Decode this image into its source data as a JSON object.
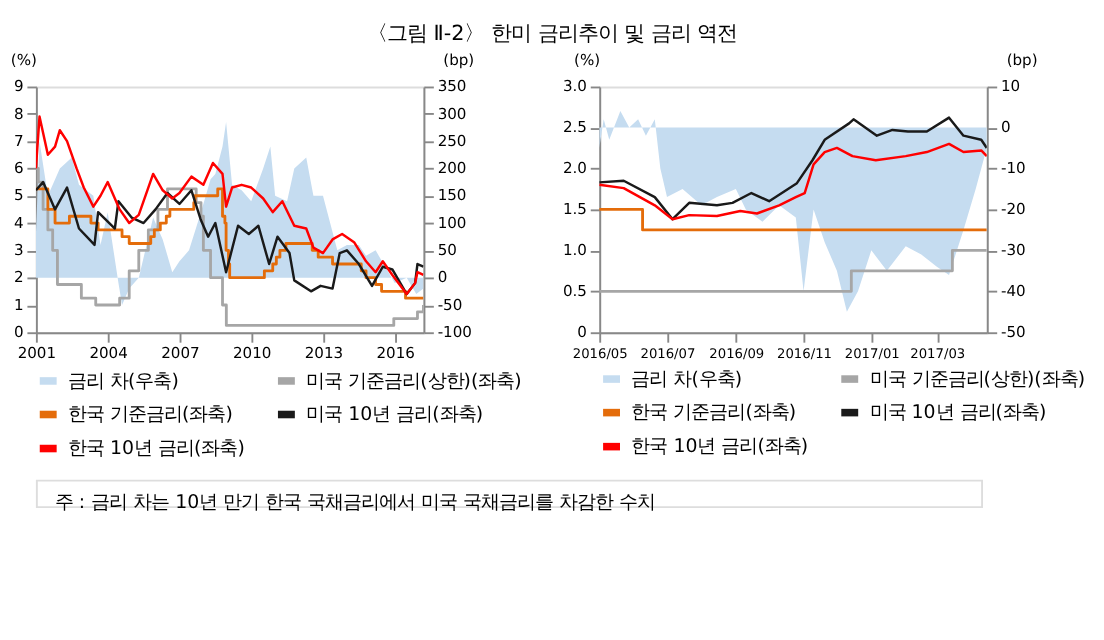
{
  "chart_data": [
    {
      "type": "line",
      "title": "〈그림 Ⅱ-2〉 한미 금리추이 및 금리 역전",
      "annotations": [
        "주 : 금리 차는 10년 만기 한국 국채금리에서 미국 국채금리를 차감한 수치"
      ],
      "xlim": [
        2001,
        2017.2
      ],
      "xticks": [
        2001,
        2004,
        2007,
        2010,
        2013,
        2016
      ],
      "ylim": [
        0,
        9
      ],
      "yticks": [
        0,
        1,
        2,
        3,
        4,
        5,
        6,
        7,
        8,
        9
      ],
      "y2lim": [
        -100,
        350
      ],
      "y2ticks": [
        -100,
        -50,
        0,
        50,
        100,
        150,
        200,
        250,
        300,
        350
      ],
      "ylabel": "(%)",
      "y2label": "(bp)",
      "legend": "bottom",
      "grid": false,
      "series": [
        {
          "name": "금리 차(우축)",
          "type": "area",
          "axis": "y2",
          "color": "#c5dcf0",
          "x": [
            2001,
            2001.15,
            2001.5,
            2002.0,
            2002.5,
            2002.8,
            2003.4,
            2003.7,
            2004.0,
            2004.45,
            2004.6,
            2004.9,
            2005.3,
            2005.9,
            2006.3,
            2006.7,
            2007.0,
            2007.4,
            2007.9,
            2008.3,
            2008.5,
            2008.8,
            2008.95,
            2009.2,
            2009.6,
            2010.0,
            2010.5,
            2010.8,
            2011.0,
            2011.5,
            2011.8,
            2012.3,
            2012.6,
            2013.0,
            2013.6,
            2014.0,
            2014.5,
            2014.8,
            2015.2,
            2015.6,
            2016.0,
            2016.5,
            2016.9,
            2017.2
          ],
          "values": [
            80,
            250,
            150,
            200,
            220,
            170,
            150,
            60,
            120,
            -10,
            -50,
            -20,
            0,
            110,
            70,
            10,
            30,
            50,
            120,
            180,
            190,
            240,
            285,
            170,
            160,
            140,
            200,
            240,
            150,
            140,
            200,
            220,
            150,
            150,
            50,
            60,
            60,
            40,
            50,
            20,
            -10,
            0,
            -30,
            -20
          ]
        },
        {
          "name": "미국 기준금리(상한)(좌축)",
          "type": "step",
          "color": "#a6a6a6",
          "x": [
            2001,
            2001.1,
            2001.3,
            2001.5,
            2001.7,
            2001.9,
            2002.9,
            2003.5,
            2004.5,
            2004.9,
            2005.3,
            2005.7,
            2006.1,
            2006.5,
            2007.7,
            2007.9,
            2008.0,
            2008.3,
            2008.8,
            2008.96,
            2015.96,
            2016.95,
            2017.2
          ],
          "values": [
            6.0,
            5.5,
            4.5,
            3.75,
            3.0,
            1.75,
            1.25,
            1.0,
            1.25,
            2.25,
            3.0,
            3.75,
            4.5,
            5.25,
            4.75,
            4.25,
            3.0,
            2.0,
            1.0,
            0.25,
            0.5,
            0.75,
            1.0
          ]
        },
        {
          "name": "한국 기준금리(좌축)",
          "type": "step",
          "color": "#e46c0a",
          "x": [
            2001,
            2001.5,
            2001.8,
            2002.4,
            2003.3,
            2003.6,
            2004.6,
            2004.9,
            2005.8,
            2005.95,
            2006.2,
            2006.45,
            2006.6,
            2007.6,
            2007.65,
            2008.6,
            2008.8,
            2008.9,
            2008.95,
            2009.05,
            2009.1,
            2010.55,
            2010.9,
            2011.05,
            2011.2,
            2011.45,
            2012.55,
            2012.8,
            2013.4,
            2014.6,
            2014.8,
            2015.2,
            2015.45,
            2016.45,
            2017.2
          ],
          "values": [
            5.25,
            4.5,
            4.0,
            4.25,
            4.0,
            3.75,
            3.5,
            3.25,
            3.5,
            3.75,
            4.0,
            4.25,
            4.5,
            4.75,
            5.0,
            5.25,
            4.25,
            4.0,
            3.0,
            2.5,
            2.0,
            2.25,
            2.5,
            2.75,
            3.0,
            3.25,
            3.0,
            2.75,
            2.5,
            2.25,
            2.0,
            1.75,
            1.5,
            1.25,
            1.25
          ]
        },
        {
          "name": "미국 10년 금리(좌축)",
          "type": "line",
          "color": "#1a1a1a",
          "x": [
            2001,
            2001.3,
            2001.8,
            2002.3,
            2002.8,
            2003.45,
            2003.6,
            2004.3,
            2004.45,
            2005.0,
            2005.5,
            2006.0,
            2006.5,
            2007.0,
            2007.5,
            2007.9,
            2008.2,
            2008.5,
            2008.95,
            2009.45,
            2009.9,
            2010.3,
            2010.75,
            2011.1,
            2011.6,
            2011.8,
            2012.5,
            2012.9,
            2013.4,
            2013.7,
            2014.0,
            2014.5,
            2015.05,
            2015.5,
            2015.9,
            2016.5,
            2016.85,
            2016.95,
            2017.2
          ],
          "values": [
            5.2,
            5.5,
            4.5,
            5.3,
            3.8,
            3.2,
            4.4,
            3.8,
            4.8,
            4.2,
            4.0,
            4.5,
            5.1,
            4.7,
            5.2,
            4.1,
            3.5,
            4.0,
            2.2,
            3.9,
            3.6,
            3.9,
            2.5,
            3.5,
            2.9,
            1.9,
            1.5,
            1.7,
            1.6,
            2.9,
            3.0,
            2.5,
            1.7,
            2.4,
            2.3,
            1.4,
            1.8,
            2.5,
            2.4
          ]
        },
        {
          "name": "한국 10년 금리(좌축)",
          "type": "line",
          "color": "#ff0000",
          "x": [
            2001,
            2001.15,
            2001.5,
            2001.8,
            2002.0,
            2002.3,
            2002.7,
            2003.0,
            2003.4,
            2003.7,
            2004.0,
            2004.5,
            2004.9,
            2005.3,
            2005.9,
            2006.3,
            2006.7,
            2007.0,
            2007.5,
            2008.0,
            2008.4,
            2008.8,
            2008.95,
            2009.2,
            2009.6,
            2010.0,
            2010.5,
            2010.9,
            2011.3,
            2011.8,
            2012.3,
            2012.6,
            2013.0,
            2013.4,
            2013.8,
            2014.3,
            2014.8,
            2015.2,
            2015.5,
            2015.9,
            2016.5,
            2016.85,
            2016.95,
            2017.2
          ],
          "values": [
            6.0,
            7.9,
            6.5,
            6.8,
            7.4,
            7.0,
            6.0,
            5.3,
            4.6,
            5.0,
            5.5,
            4.5,
            4.0,
            4.3,
            5.8,
            5.2,
            4.9,
            5.1,
            5.7,
            5.4,
            6.2,
            5.8,
            4.6,
            5.3,
            5.4,
            5.3,
            4.9,
            4.4,
            4.8,
            3.9,
            3.8,
            3.1,
            2.9,
            3.4,
            3.6,
            3.3,
            2.6,
            2.2,
            2.6,
            2.1,
            1.4,
            1.8,
            2.2,
            2.1
          ]
        }
      ]
    },
    {
      "type": "line",
      "xlim": [
        "2016-05-01",
        "2017-04-15"
      ],
      "xticks": [
        {
          "value": "2016-05-01",
          "label": "2016/05"
        },
        {
          "value": "2016-07-01",
          "label": "2016/07"
        },
        {
          "value": "2016-09-01",
          "label": "2016/09"
        },
        {
          "value": "2016-11-01",
          "label": "2016/11"
        },
        {
          "value": "2017-01-01",
          "label": "2017/01"
        },
        {
          "value": "2017-03-01",
          "label": "2017/03"
        }
      ],
      "ylim": [
        0,
        3
      ],
      "yticks": [
        0,
        {
          "value": 0.5,
          "label": "0.5"
        },
        {
          "value": 1,
          "label": "1.0"
        },
        1.5,
        {
          "value": 2,
          "label": "2.0"
        },
        2.5,
        {
          "value": 3,
          "label": "3.0"
        }
      ],
      "y2lim": [
        -50,
        10
      ],
      "y2ticks": [
        -50,
        -40,
        -30,
        -20,
        -10,
        0,
        10
      ],
      "ylabel": "(%)",
      "y2label": "(bp)",
      "legend": "bottom",
      "grid": false,
      "series": [
        {
          "name": "금리 차(우축)",
          "type": "area",
          "axis": "y2",
          "color": "#c5dcf0",
          "x": [
            "2016-05-01",
            "2016-05-05",
            "2016-05-10",
            "2016-05-20",
            "2016-05-28",
            "2016-06-05",
            "2016-06-12",
            "2016-06-20",
            "2016-06-25",
            "2016-07-01",
            "2016-07-15",
            "2016-08-01",
            "2016-08-15",
            "2016-09-01",
            "2016-09-10",
            "2016-09-25",
            "2016-10-10",
            "2016-10-25",
            "2016-11-01",
            "2016-11-10",
            "2016-11-20",
            "2016-12-01",
            "2016-12-10",
            "2016-12-20",
            "2017-01-01",
            "2017-01-15",
            "2017-02-01",
            "2017-02-15",
            "2017-03-01",
            "2017-03-12",
            "2017-03-25",
            "2017-04-05",
            "2017-04-15"
          ],
          "values": [
            -5,
            2,
            -3,
            4,
            0,
            2,
            -2,
            2,
            -10,
            -17,
            -15,
            -19,
            -17,
            -15,
            -20,
            -23,
            -19,
            -22,
            -40,
            -20,
            -28,
            -35,
            -45,
            -40,
            -30,
            -35,
            -29,
            -31,
            -34,
            -36,
            -25,
            -15,
            -5
          ]
        },
        {
          "name": "미국 기준금리(상한)(좌축)",
          "type": "step",
          "color": "#a6a6a6",
          "x": [
            "2016-05-01",
            "2016-12-14",
            "2017-03-15",
            "2017-04-15"
          ],
          "values": [
            0.5,
            0.75,
            1.0,
            1.0
          ]
        },
        {
          "name": "한국 기준금리(좌축)",
          "type": "step",
          "color": "#e46c0a",
          "x": [
            "2016-05-01",
            "2016-06-09",
            "2017-04-15"
          ],
          "values": [
            1.5,
            1.25,
            1.25
          ]
        },
        {
          "name": "미국 10년 금리(좌축)",
          "type": "line",
          "color": "#1a1a1a",
          "x": [
            "2016-05-01",
            "2016-05-23",
            "2016-06-20",
            "2016-07-06",
            "2016-07-21",
            "2016-08-15",
            "2016-08-29",
            "2016-09-15",
            "2016-10-01",
            "2016-10-18",
            "2016-10-26",
            "2016-11-09",
            "2016-11-20",
            "2016-12-12",
            "2016-12-16",
            "2017-01-06",
            "2017-01-20",
            "2017-02-03",
            "2017-02-20",
            "2017-03-12",
            "2017-03-25",
            "2017-04-10",
            "2017-04-15"
          ],
          "values": [
            1.83,
            1.85,
            1.65,
            1.38,
            1.58,
            1.55,
            1.58,
            1.7,
            1.6,
            1.75,
            1.82,
            2.1,
            2.35,
            2.55,
            2.6,
            2.4,
            2.47,
            2.45,
            2.45,
            2.62,
            2.4,
            2.35,
            2.25
          ]
        },
        {
          "name": "한국 10년 금리(좌축)",
          "type": "line",
          "color": "#ff0000",
          "x": [
            "2016-05-01",
            "2016-05-23",
            "2016-06-20",
            "2016-07-06",
            "2016-07-21",
            "2016-08-15",
            "2016-09-05",
            "2016-09-20",
            "2016-10-10",
            "2016-10-25",
            "2016-11-02",
            "2016-11-10",
            "2016-11-20",
            "2016-12-01",
            "2016-12-15",
            "2017-01-05",
            "2017-02-01",
            "2017-02-20",
            "2017-03-12",
            "2017-03-25",
            "2017-04-10",
            "2017-04-15"
          ],
          "values": [
            1.8,
            1.76,
            1.55,
            1.38,
            1.43,
            1.42,
            1.48,
            1.45,
            1.55,
            1.65,
            1.7,
            2.05,
            2.2,
            2.25,
            2.15,
            2.1,
            2.15,
            2.2,
            2.3,
            2.2,
            2.22,
            2.15
          ]
        }
      ]
    }
  ]
}
